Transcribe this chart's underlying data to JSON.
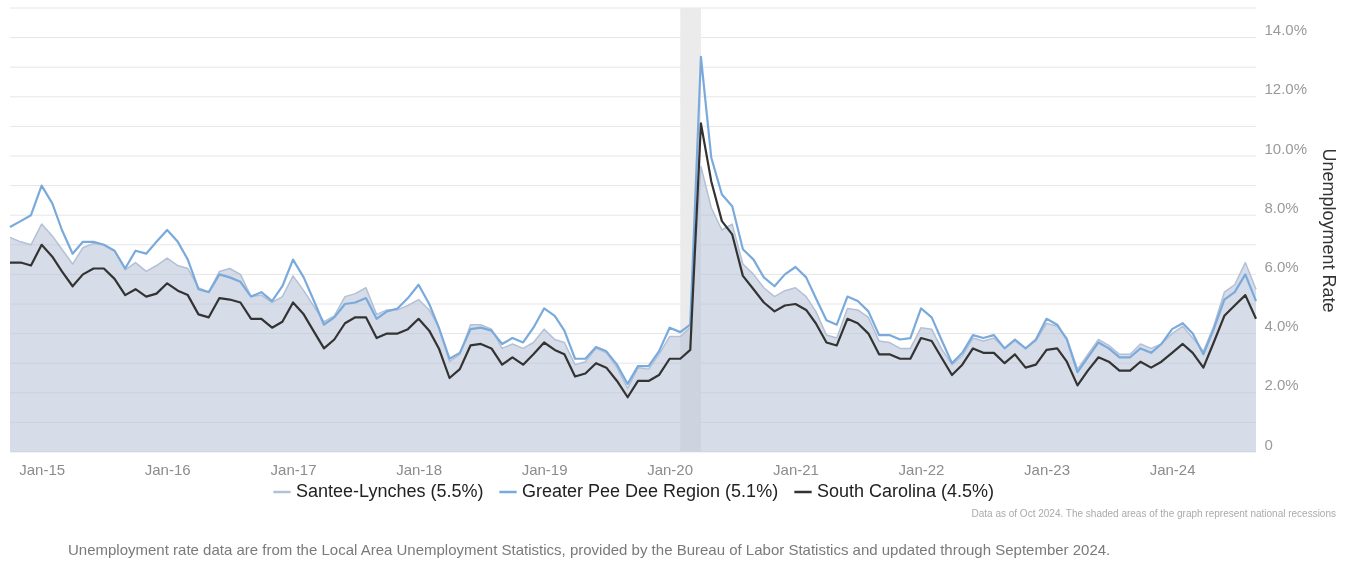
{
  "chart_data": {
    "type": "line",
    "ylabel": "Unemployment Rate",
    "x": [
      "2014-10",
      "2014-11",
      "2014-12",
      "2015-01",
      "2015-02",
      "2015-03",
      "2015-04",
      "2015-05",
      "2015-06",
      "2015-07",
      "2015-08",
      "2015-09",
      "2015-10",
      "2015-11",
      "2015-12",
      "2016-01",
      "2016-02",
      "2016-03",
      "2016-04",
      "2016-05",
      "2016-06",
      "2016-07",
      "2016-08",
      "2016-09",
      "2016-10",
      "2016-11",
      "2016-12",
      "2017-01",
      "2017-02",
      "2017-03",
      "2017-04",
      "2017-05",
      "2017-06",
      "2017-07",
      "2017-08",
      "2017-09",
      "2017-10",
      "2017-11",
      "2017-12",
      "2018-01",
      "2018-02",
      "2018-03",
      "2018-04",
      "2018-05",
      "2018-06",
      "2018-07",
      "2018-08",
      "2018-09",
      "2018-10",
      "2018-11",
      "2018-12",
      "2019-01",
      "2019-02",
      "2019-03",
      "2019-04",
      "2019-05",
      "2019-06",
      "2019-07",
      "2019-08",
      "2019-09",
      "2019-10",
      "2019-11",
      "2019-12",
      "2020-01",
      "2020-02",
      "2020-03",
      "2020-04",
      "2020-05",
      "2020-06",
      "2020-07",
      "2020-08",
      "2020-09",
      "2020-10",
      "2020-11",
      "2020-12",
      "2021-01",
      "2021-02",
      "2021-03",
      "2021-04",
      "2021-05",
      "2021-06",
      "2021-07",
      "2021-08",
      "2021-09",
      "2021-10",
      "2021-11",
      "2021-12",
      "2022-01",
      "2022-02",
      "2022-03",
      "2022-04",
      "2022-05",
      "2022-06",
      "2022-07",
      "2022-08",
      "2022-09",
      "2022-10",
      "2022-11",
      "2022-12",
      "2023-01",
      "2023-02",
      "2023-03",
      "2023-04",
      "2023-05",
      "2023-06",
      "2023-07",
      "2023-08",
      "2023-09",
      "2023-10",
      "2023-11",
      "2023-12",
      "2024-01",
      "2024-02",
      "2024-03",
      "2024-04",
      "2024-05",
      "2024-06",
      "2024-07",
      "2024-08",
      "2024-09"
    ],
    "series": [
      {
        "name": "Santee-Lynches (5.5%)",
        "type": "area",
        "color": "#b4c0d6",
        "values": [
          7.25,
          7.1,
          7.0,
          7.7,
          7.3,
          6.85,
          6.35,
          6.9,
          7.05,
          7.0,
          6.8,
          6.15,
          6.4,
          6.1,
          6.3,
          6.55,
          6.3,
          6.2,
          5.55,
          5.4,
          6.1,
          6.2,
          6.0,
          5.25,
          5.3,
          5.05,
          5.25,
          5.95,
          5.45,
          4.95,
          4.4,
          4.6,
          5.25,
          5.35,
          5.55,
          4.65,
          4.8,
          4.8,
          4.95,
          5.15,
          4.8,
          4.2,
          3.05,
          3.3,
          4.3,
          4.3,
          4.15,
          3.5,
          3.65,
          3.5,
          3.7,
          4.15,
          3.8,
          3.7,
          2.95,
          3.05,
          3.5,
          3.35,
          2.85,
          2.15,
          2.85,
          2.8,
          3.3,
          3.9,
          3.9,
          4.2,
          9.65,
          8.25,
          7.5,
          7.7,
          6.35,
          6.0,
          5.55,
          5.25,
          5.45,
          5.55,
          5.25,
          4.75,
          3.95,
          3.85,
          4.85,
          4.8,
          4.55,
          3.75,
          3.7,
          3.5,
          3.5,
          4.2,
          4.15,
          3.5,
          2.95,
          3.25,
          3.85,
          3.75,
          3.85,
          3.5,
          3.75,
          3.5,
          3.75,
          4.35,
          4.25,
          3.85,
          2.8,
          3.3,
          3.8,
          3.6,
          3.3,
          3.3,
          3.65,
          3.5,
          3.65,
          4.0,
          4.25,
          3.85,
          3.4,
          4.25,
          5.4,
          5.65,
          6.4,
          5.5
        ]
      },
      {
        "name": "Greater Pee Dee Region (5.1%)",
        "color": "#7aaadc",
        "values": [
          7.6,
          7.8,
          8.0,
          9.0,
          8.4,
          7.5,
          6.7,
          7.1,
          7.1,
          7.0,
          6.8,
          6.2,
          6.8,
          6.7,
          7.1,
          7.5,
          7.1,
          6.5,
          5.5,
          5.4,
          6.0,
          5.9,
          5.75,
          5.25,
          5.4,
          5.1,
          5.6,
          6.5,
          5.9,
          5.15,
          4.3,
          4.55,
          5.0,
          5.05,
          5.2,
          4.5,
          4.75,
          4.85,
          5.2,
          5.65,
          5.0,
          4.2,
          3.15,
          3.35,
          4.15,
          4.2,
          4.1,
          3.65,
          3.85,
          3.7,
          4.2,
          4.85,
          4.6,
          4.1,
          3.15,
          3.15,
          3.55,
          3.4,
          2.95,
          2.3,
          2.9,
          2.9,
          3.4,
          4.2,
          4.05,
          4.3,
          13.35,
          9.95,
          8.7,
          8.3,
          6.85,
          6.5,
          5.9,
          5.6,
          6.0,
          6.25,
          5.9,
          5.2,
          4.45,
          4.3,
          5.25,
          5.1,
          4.75,
          3.95,
          3.95,
          3.8,
          3.85,
          4.85,
          4.55,
          3.8,
          3.0,
          3.35,
          3.95,
          3.85,
          3.95,
          3.5,
          3.8,
          3.5,
          3.8,
          4.5,
          4.3,
          3.8,
          2.7,
          3.2,
          3.7,
          3.5,
          3.2,
          3.2,
          3.5,
          3.35,
          3.65,
          4.15,
          4.35,
          4.0,
          3.3,
          4.15,
          5.15,
          5.4,
          6.0,
          5.1
        ]
      },
      {
        "name": "South Carolina (4.5%)",
        "color": "#333333",
        "values": [
          6.4,
          6.4,
          6.3,
          7.0,
          6.6,
          6.1,
          5.6,
          6.0,
          6.2,
          6.2,
          5.85,
          5.3,
          5.5,
          5.25,
          5.35,
          5.7,
          5.45,
          5.3,
          4.65,
          4.55,
          5.2,
          5.15,
          5.05,
          4.5,
          4.5,
          4.2,
          4.4,
          5.05,
          4.65,
          4.1,
          3.5,
          3.8,
          4.35,
          4.55,
          4.55,
          3.85,
          4.0,
          4.0,
          4.15,
          4.5,
          4.1,
          3.5,
          2.5,
          2.8,
          3.6,
          3.65,
          3.5,
          2.95,
          3.2,
          2.95,
          3.3,
          3.7,
          3.45,
          3.3,
          2.55,
          2.65,
          3.0,
          2.85,
          2.4,
          1.85,
          2.4,
          2.4,
          2.6,
          3.15,
          3.15,
          3.45,
          11.1,
          9.15,
          7.8,
          7.35,
          5.95,
          5.5,
          5.05,
          4.75,
          4.95,
          5.0,
          4.8,
          4.35,
          3.7,
          3.6,
          4.5,
          4.35,
          4.0,
          3.3,
          3.3,
          3.15,
          3.15,
          3.85,
          3.75,
          3.2,
          2.6,
          2.95,
          3.5,
          3.35,
          3.35,
          3.0,
          3.3,
          2.85,
          2.95,
          3.45,
          3.5,
          3.05,
          2.25,
          2.75,
          3.2,
          3.05,
          2.75,
          2.75,
          3.05,
          2.85,
          3.05,
          3.35,
          3.65,
          3.35,
          2.85,
          3.7,
          4.6,
          4.95,
          5.3,
          4.5
        ]
      }
    ],
    "xlim": [
      "2014-10",
      "2024-09"
    ],
    "xticks": [
      {
        "value": "2015-01",
        "label": "Jan-15"
      },
      {
        "value": "2016-01",
        "label": "Jan-16"
      },
      {
        "value": "2017-01",
        "label": "Jan-17"
      },
      {
        "value": "2018-01",
        "label": "Jan-18"
      },
      {
        "value": "2019-01",
        "label": "Jan-19"
      },
      {
        "value": "2020-01",
        "label": "Jan-20"
      },
      {
        "value": "2021-01",
        "label": "Jan-21"
      },
      {
        "value": "2022-01",
        "label": "Jan-22"
      },
      {
        "value": "2023-01",
        "label": "Jan-23"
      },
      {
        "value": "2024-01",
        "label": "Jan-24"
      }
    ],
    "ylim": [
      0,
      15
    ],
    "yticks": [
      {
        "value": 0,
        "label": "0"
      },
      {
        "value": 1,
        "label": null
      },
      {
        "value": 2,
        "label": "2.0%"
      },
      {
        "value": 3,
        "label": null
      },
      {
        "value": 4,
        "label": "4.0%"
      },
      {
        "value": 5,
        "label": null
      },
      {
        "value": 6,
        "label": "6.0%"
      },
      {
        "value": 7,
        "label": null
      },
      {
        "value": 8,
        "label": "8.0%"
      },
      {
        "value": 9,
        "label": null
      },
      {
        "value": 10,
        "label": "10.0%"
      },
      {
        "value": 11,
        "label": null
      },
      {
        "value": 12,
        "label": "12.0%"
      },
      {
        "value": 13,
        "label": null
      },
      {
        "value": 14,
        "label": "14.0%"
      },
      {
        "value": 15,
        "label": null
      }
    ],
    "bands": [
      {
        "axis": "x",
        "from": "2020-02",
        "to": "2020-04",
        "color": "#ebebeb"
      }
    ],
    "grid": "y",
    "legend": "bottom",
    "marker": "none",
    "line_style": "solid",
    "annotations": [
      "Data as of Oct 2024. The shaded areas of the graph represent national recessions",
      "Unemployment rate data are from the Local Area Unemployment Statistics, provided by the Bureau of Labor Statistics and updated through September 2024."
    ]
  }
}
